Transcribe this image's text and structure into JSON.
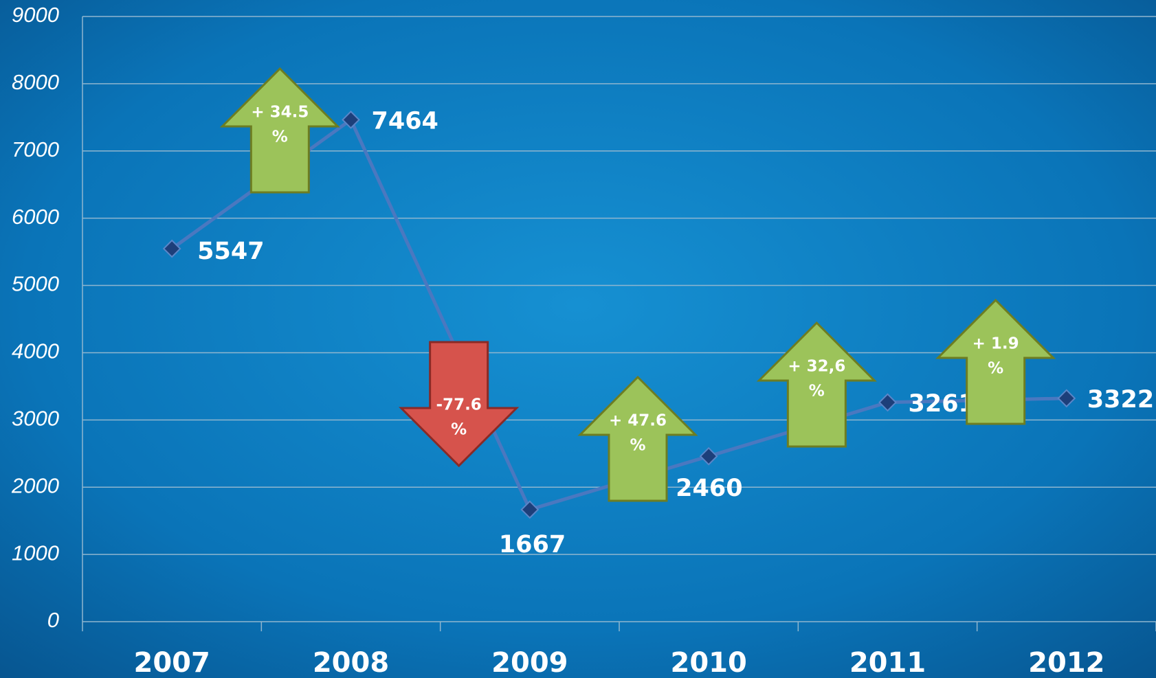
{
  "chart_data": {
    "type": "line",
    "categories": [
      "2007",
      "2008",
      "2009",
      "2010",
      "2011",
      "2012"
    ],
    "series": [
      {
        "color": "#4a78c0",
        "values": [
          5547,
          7464,
          1667,
          2460,
          3261,
          3322
        ]
      }
    ],
    "ylim": [
      0,
      9000
    ],
    "yticks": [
      0,
      1000,
      2000,
      3000,
      4000,
      5000,
      6000,
      7000,
      8000,
      9000
    ],
    "grid": true,
    "annotations": [
      {
        "text": [
          "+ 34.5",
          "%"
        ],
        "direction": "up",
        "color": "#9cc35a"
      },
      {
        "text": [
          "-77.6",
          "%"
        ],
        "direction": "down",
        "color": "#d6534c"
      },
      {
        "text": [
          "+ 47.6",
          "%"
        ],
        "direction": "up",
        "color": "#9cc35a"
      },
      {
        "text": [
          "+ 32,6",
          "%"
        ],
        "direction": "up",
        "color": "#9cc35a"
      },
      {
        "text": [
          "+ 1.9",
          "%"
        ],
        "direction": "up",
        "color": "#9cc35a"
      }
    ]
  }
}
